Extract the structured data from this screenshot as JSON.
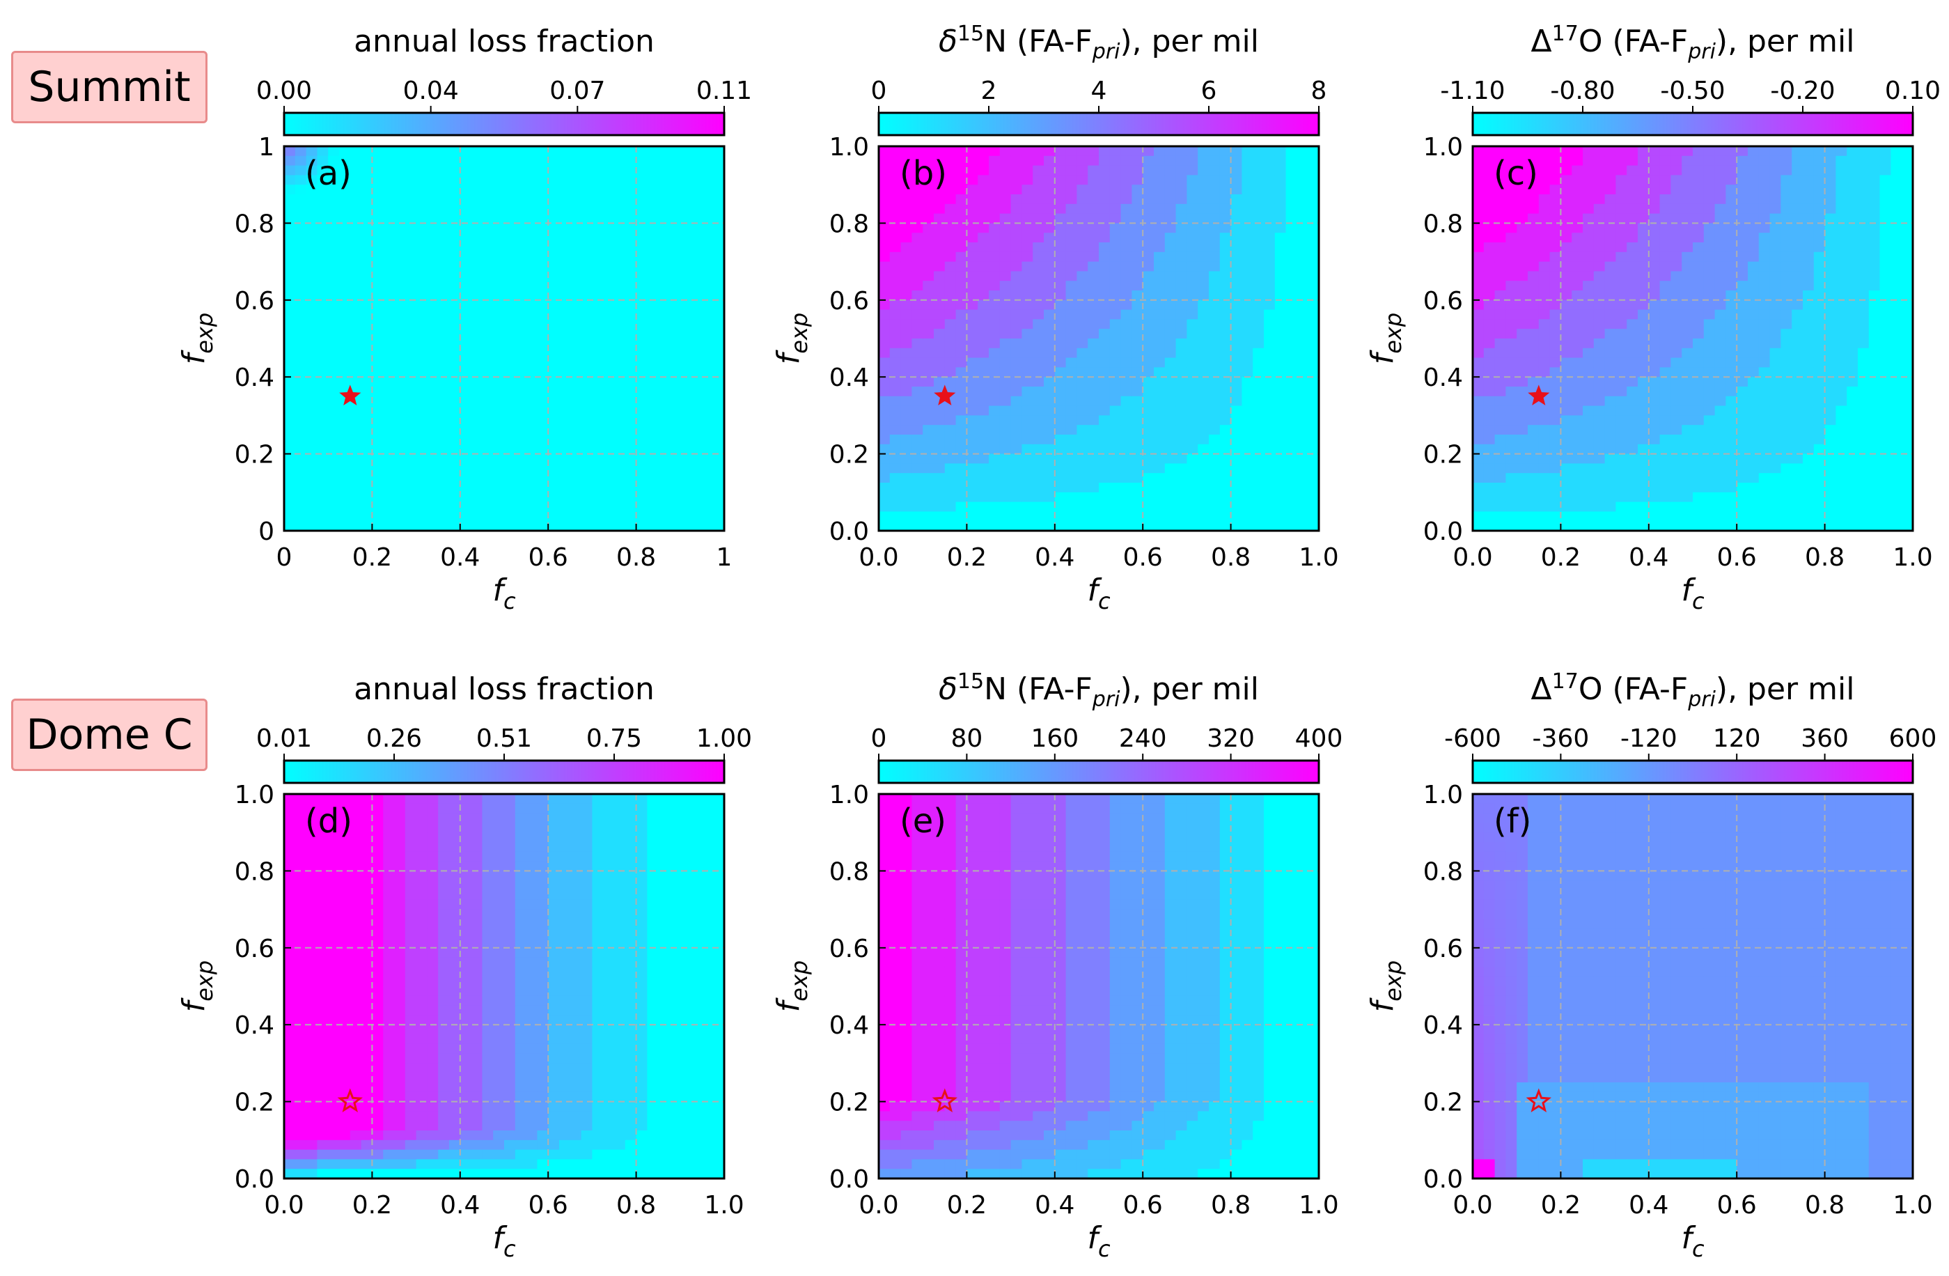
{
  "rows": [
    {
      "site": "Summit"
    },
    {
      "site": "Dome C"
    }
  ],
  "colors": {
    "low": "#00ffff",
    "high": "#ff00ff",
    "marker": "#e8101a",
    "grid": "#b0b0b0"
  },
  "chart_data": [
    {
      "type": "heatmap",
      "row": 0,
      "panel_label": "(a)",
      "colorbar_label": "annual loss fraction",
      "colorbar_ticks": [
        "0.00",
        "0.04",
        "0.07",
        "0.11"
      ],
      "xlabel": "f_c",
      "ylabel": "f_exp",
      "xticks": [
        "0",
        "0.2",
        "0.4",
        "0.6",
        "0.8",
        "1"
      ],
      "yticks": [
        "0",
        "0.2",
        "0.4",
        "0.6",
        "0.8",
        "1"
      ],
      "xlim": [
        0,
        1
      ],
      "ylim": [
        0,
        1
      ],
      "vmin": 0.0,
      "vmax": 0.11,
      "pattern": "corner",
      "grid": true,
      "marker": {
        "x": 0.15,
        "y": 0.35,
        "style": "filled-star"
      }
    },
    {
      "type": "heatmap",
      "row": 0,
      "panel_label": "(b)",
      "colorbar_label": "δ15N (FA-Fpri), per mil",
      "colorbar_ticks": [
        "0",
        "2",
        "4",
        "6",
        "8"
      ],
      "xlabel": "f_c",
      "ylabel": "f_exp",
      "xticks": [
        "0.0",
        "0.2",
        "0.4",
        "0.6",
        "0.8",
        "1.0"
      ],
      "yticks": [
        "0.0",
        "0.2",
        "0.4",
        "0.6",
        "0.8",
        "1.0"
      ],
      "xlim": [
        0,
        1
      ],
      "ylim": [
        0,
        1
      ],
      "vmin": 0,
      "vmax": 8,
      "pattern": "hyperbolic",
      "grid": true,
      "marker": {
        "x": 0.15,
        "y": 0.35,
        "style": "filled-star"
      }
    },
    {
      "type": "heatmap",
      "row": 0,
      "panel_label": "(c)",
      "colorbar_label": "Δ17O (FA-Fpri), per mil",
      "colorbar_ticks": [
        "-1.10",
        "-0.80",
        "-0.50",
        "-0.20",
        "0.10"
      ],
      "xlabel": "f_c",
      "ylabel": "f_exp",
      "xticks": [
        "0.0",
        "0.2",
        "0.4",
        "0.6",
        "0.8",
        "1.0"
      ],
      "yticks": [
        "0.0",
        "0.2",
        "0.4",
        "0.6",
        "0.8",
        "1.0"
      ],
      "xlim": [
        0,
        1
      ],
      "ylim": [
        0,
        1
      ],
      "vmin": -1.1,
      "vmax": 0.1,
      "pattern": "hyperbolic-c",
      "grid": true,
      "marker": {
        "x": 0.15,
        "y": 0.35,
        "style": "filled-star"
      }
    },
    {
      "type": "heatmap",
      "row": 1,
      "panel_label": "(d)",
      "colorbar_label": "annual loss fraction",
      "colorbar_ticks": [
        "0.01",
        "0.26",
        "0.51",
        "0.75",
        "1.00"
      ],
      "xlabel": "f_c",
      "ylabel": "f_exp",
      "xticks": [
        "0.0",
        "0.2",
        "0.4",
        "0.6",
        "0.8",
        "1.0"
      ],
      "yticks": [
        "0.0",
        "0.2",
        "0.4",
        "0.6",
        "0.8",
        "1.0"
      ],
      "xlim": [
        0,
        1
      ],
      "ylim": [
        0,
        1
      ],
      "vmin": 0.01,
      "vmax": 1.0,
      "pattern": "loss-dome",
      "grid": true,
      "marker": {
        "x": 0.15,
        "y": 0.2,
        "style": "open-star"
      }
    },
    {
      "type": "heatmap",
      "row": 1,
      "panel_label": "(e)",
      "colorbar_label": "δ15N (FA-Fpri), per mil",
      "colorbar_ticks": [
        "0",
        "80",
        "160",
        "240",
        "320",
        "400"
      ],
      "xlabel": "f_c",
      "ylabel": "f_exp",
      "xticks": [
        "0.0",
        "0.2",
        "0.4",
        "0.6",
        "0.8",
        "1.0"
      ],
      "yticks": [
        "0.0",
        "0.2",
        "0.4",
        "0.6",
        "0.8",
        "1.0"
      ],
      "xlim": [
        0,
        1
      ],
      "ylim": [
        0,
        1
      ],
      "vmin": 0,
      "vmax": 400,
      "pattern": "bands-dome",
      "grid": true,
      "marker": {
        "x": 0.15,
        "y": 0.2,
        "style": "open-star"
      }
    },
    {
      "type": "heatmap",
      "row": 1,
      "panel_label": "(f)",
      "colorbar_label": "Δ17O (FA-Fpri), per mil",
      "colorbar_ticks": [
        "-600",
        "-360",
        "-120",
        "120",
        "360",
        "600"
      ],
      "xlabel": "f_c",
      "ylabel": "f_exp",
      "xticks": [
        "0.0",
        "0.2",
        "0.4",
        "0.6",
        "0.8",
        "1.0"
      ],
      "yticks": [
        "0.0",
        "0.2",
        "0.4",
        "0.6",
        "0.8",
        "1.0"
      ],
      "xlim": [
        0,
        1
      ],
      "ylim": [
        0,
        1
      ],
      "vmin": -600,
      "vmax": 600,
      "pattern": "flat-dome",
      "grid": true,
      "marker": {
        "x": 0.15,
        "y": 0.2,
        "style": "open-star"
      }
    }
  ]
}
